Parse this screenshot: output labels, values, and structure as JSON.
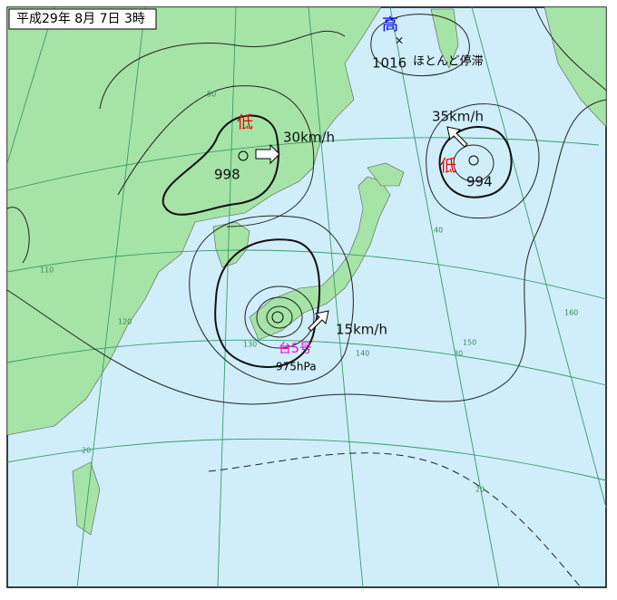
{
  "header": {
    "title": "平成29年 8月 7日 3時"
  },
  "systems": {
    "high": {
      "mark": "高",
      "pressure": 1016,
      "motion": "ほとんど停滞"
    },
    "low_west": {
      "mark": "低",
      "pressure": 998,
      "speed": "30km/h"
    },
    "low_east": {
      "mark": "低",
      "pressure": 994,
      "speed": "35km/h"
    },
    "typhoon": {
      "name": "台5号",
      "pressure": "975hPa",
      "speed": "15km/h"
    }
  },
  "grid_labels": [
    "50",
    "40",
    "30",
    "20",
    "20",
    "110",
    "120",
    "130",
    "140",
    "150",
    "160"
  ]
}
